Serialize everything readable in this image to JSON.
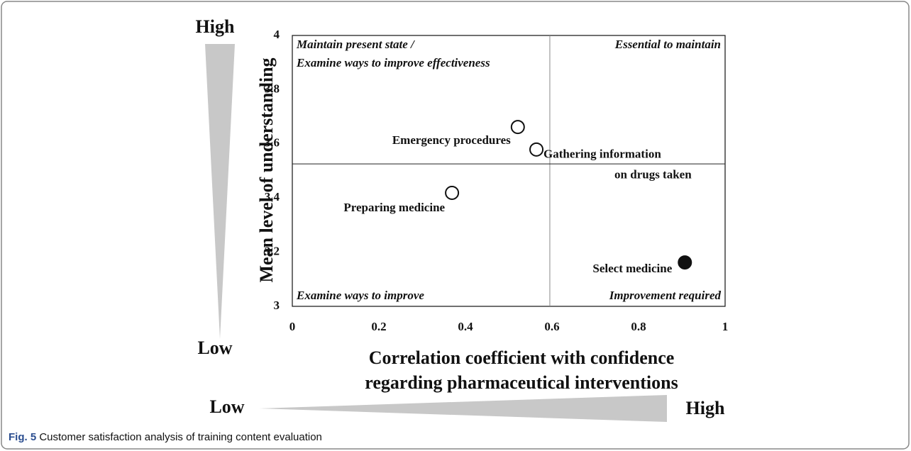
{
  "chart_data": {
    "type": "scatter",
    "title_y": "Mean level of understanding",
    "title_x": [
      "Correlation coefficient with confidence",
      "regarding pharmaceutical interventions"
    ],
    "xlim": [
      0,
      1
    ],
    "ylim": [
      3,
      4
    ],
    "xticks": [
      0,
      0.2,
      0.4,
      0.6,
      0.8,
      1
    ],
    "yticks": [
      3,
      3.2,
      3.4,
      3.6,
      3.8,
      4
    ],
    "grid": false,
    "xref": 0.595,
    "yref": 3.526,
    "quadrants": {
      "top_left": [
        "Maintain present state /",
        "Examine ways to improve effectiveness"
      ],
      "top_right": [
        "Essential to maintain"
      ],
      "bottom_left": [
        "Examine ways to improve"
      ],
      "bottom_right": [
        "Improvement required"
      ]
    },
    "points": [
      {
        "label": [
          "Emergency procedures"
        ],
        "x": 0.521,
        "y": 3.662,
        "filled": false
      },
      {
        "label": [
          "Gathering information",
          "on drugs taken"
        ],
        "x": 0.564,
        "y": 3.579,
        "filled": false
      },
      {
        "label": [
          "Preparing medicine"
        ],
        "x": 0.369,
        "y": 3.419,
        "filled": false
      },
      {
        "label": [
          "Select medicine"
        ],
        "x": 0.907,
        "y": 3.162,
        "filled": true
      }
    ],
    "y_arrow": {
      "high": "High",
      "low": "Low"
    },
    "x_arrow": {
      "high": "High",
      "low": "Low"
    },
    "figure_label": "Fig. 5",
    "caption": "Customer satisfaction analysis of training content evaluation"
  }
}
